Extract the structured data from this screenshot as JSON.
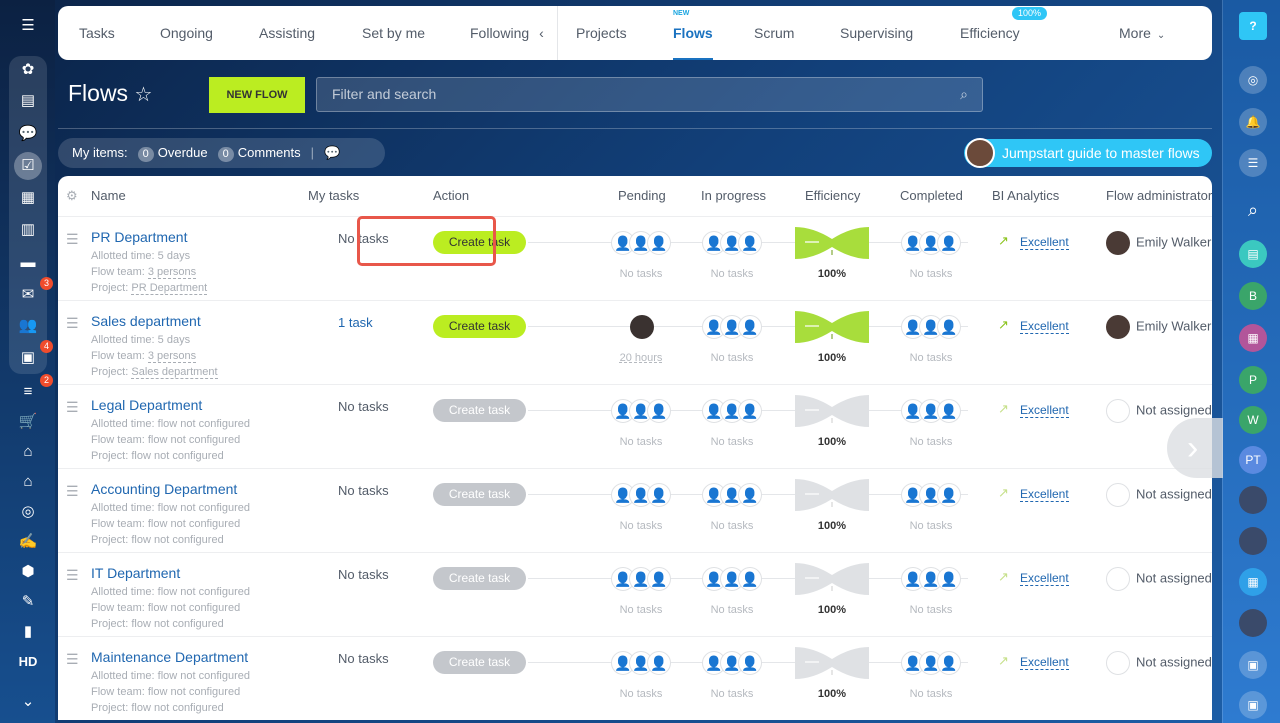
{
  "left_sidebar": {
    "items": [
      {
        "icon": "menu-icon",
        "glyph": "☰"
      },
      {
        "icon": "sites-icon",
        "glyph": "✿"
      },
      {
        "icon": "feed-icon",
        "glyph": "▤"
      },
      {
        "icon": "chat-icon",
        "glyph": "💬"
      },
      {
        "icon": "tasks-icon",
        "glyph": "☑",
        "active": true
      },
      {
        "icon": "calendar-icon",
        "glyph": "▦"
      },
      {
        "icon": "document-icon",
        "glyph": "▥"
      },
      {
        "icon": "drive-icon",
        "glyph": "▬"
      },
      {
        "icon": "mail-icon",
        "glyph": "✉",
        "badge": "3"
      },
      {
        "icon": "contacts-icon",
        "glyph": "👥"
      },
      {
        "icon": "crm-card-icon",
        "glyph": "▣",
        "badge": "4"
      },
      {
        "icon": "filter-icon",
        "glyph": "≡",
        "badge": "2"
      },
      {
        "icon": "cart-icon",
        "glyph": "🛒"
      },
      {
        "icon": "robot-icon",
        "glyph": "⌂"
      },
      {
        "icon": "warehouse-icon",
        "glyph": "⌂"
      },
      {
        "icon": "target-icon",
        "glyph": "◎"
      },
      {
        "icon": "signature-icon",
        "glyph": "✍"
      },
      {
        "icon": "box-icon",
        "glyph": "⬢"
      },
      {
        "icon": "edit-doc-icon",
        "glyph": "✎"
      },
      {
        "icon": "analytics-icon",
        "glyph": "▮"
      },
      {
        "icon": "hd-icon",
        "glyph": "HD"
      },
      {
        "icon": "chevron-down-icon",
        "glyph": "⌄"
      }
    ]
  },
  "nav": {
    "tabs": [
      {
        "label": "Tasks"
      },
      {
        "label": "Ongoing"
      },
      {
        "label": "Assisting"
      },
      {
        "label": "Set by me"
      },
      {
        "label": "Following"
      },
      {
        "label": "Projects"
      },
      {
        "label": "Flows",
        "sup": "NEW",
        "active": true
      },
      {
        "label": "Scrum"
      },
      {
        "label": "Supervising"
      },
      {
        "label": "Efficiency",
        "pill": "100%"
      },
      {
        "label": "More"
      }
    ]
  },
  "page": {
    "title": "Flows",
    "new_flow": "NEW FLOW",
    "search_placeholder": "Filter and search"
  },
  "my_items": {
    "label": "My items:",
    "overdue_count": "0",
    "overdue": "Overdue",
    "comments_count": "0",
    "comments": "Comments"
  },
  "guide": "Jumpstart guide to master flows",
  "table": {
    "headers": [
      "Name",
      "My tasks",
      "Action",
      "Pending",
      "In progress",
      "Efficiency",
      "Completed",
      "BI Analytics",
      "Flow administrator"
    ],
    "labels": {
      "allotted": "Allotted time:",
      "team": "Flow team:",
      "project": "Project:",
      "create": "Create task"
    },
    "rows": [
      {
        "name": "PR Department",
        "allotted": "5 days",
        "team": "3 persons",
        "project": "PR Department",
        "my_tasks": "No tasks",
        "enabled": true,
        "pending": "No tasks",
        "pending_avatar": false,
        "in_progress": "No tasks",
        "efficiency": "100%",
        "completed": "No tasks",
        "bi": "Excellent",
        "admin": "Emily Walker"
      },
      {
        "name": "Sales department",
        "allotted": "5 days",
        "team": "3 persons",
        "project": "Sales department",
        "my_tasks": "1 task",
        "enabled": true,
        "pending": "20 hours",
        "pending_avatar": true,
        "in_progress": "No tasks",
        "efficiency": "100%",
        "completed": "No tasks",
        "bi": "Excellent",
        "admin": "Emily Walker"
      },
      {
        "name": "Legal Department",
        "allotted": "flow not configured",
        "team": "flow not configured",
        "project": "flow not configured",
        "my_tasks": "No tasks",
        "enabled": false,
        "pending": "No tasks",
        "in_progress": "No tasks",
        "efficiency": "100%",
        "completed": "No tasks",
        "bi": "Excellent",
        "admin": "Not assigned"
      },
      {
        "name": "Accounting Department",
        "allotted": "flow not configured",
        "team": "flow not configured",
        "project": "flow not configured",
        "my_tasks": "No tasks",
        "enabled": false,
        "pending": "No tasks",
        "in_progress": "No tasks",
        "efficiency": "100%",
        "completed": "No tasks",
        "bi": "Excellent",
        "admin": "Not assigned"
      },
      {
        "name": "IT Department",
        "allotted": "flow not configured",
        "team": "flow not configured",
        "project": "flow not configured",
        "my_tasks": "No tasks",
        "enabled": false,
        "pending": "No tasks",
        "in_progress": "No tasks",
        "efficiency": "100%",
        "completed": "No tasks",
        "bi": "Excellent",
        "admin": "Not assigned"
      },
      {
        "name": "Maintenance Department",
        "allotted": "flow not configured",
        "team": "flow not configured",
        "project": "flow not configured",
        "my_tasks": "No tasks",
        "enabled": false,
        "pending": "No tasks",
        "in_progress": "No tasks",
        "efficiency": "100%",
        "completed": "No tasks",
        "bi": "Excellent",
        "admin": "Not assigned"
      }
    ]
  },
  "right_sidebar": {
    "items": [
      {
        "icon": "help-icon",
        "glyph": "?"
      },
      {
        "icon": "copilot-icon",
        "glyph": "◎"
      },
      {
        "icon": "bell-icon",
        "glyph": "🔔"
      },
      {
        "icon": "messages-icon",
        "glyph": "☰"
      },
      {
        "icon": "search-icon",
        "glyph": "⌕"
      },
      {
        "icon": "chat-avatar-icon",
        "glyph": "▤"
      },
      {
        "icon": "avatar-b",
        "glyph": "B"
      },
      {
        "icon": "calendar-chat-icon",
        "glyph": "▦"
      },
      {
        "icon": "avatar-p",
        "glyph": "P"
      },
      {
        "icon": "avatar-w",
        "glyph": "W"
      },
      {
        "icon": "avatar-pt",
        "glyph": "PT"
      },
      {
        "icon": "user-avatar",
        "glyph": ""
      },
      {
        "icon": "user-avatar",
        "glyph": ""
      },
      {
        "icon": "calendar-icon",
        "glyph": "▦"
      },
      {
        "icon": "user-avatar",
        "glyph": ""
      },
      {
        "icon": "contact-card-icon",
        "glyph": "▣"
      },
      {
        "icon": "contact-card-icon",
        "glyph": "▣"
      }
    ]
  },
  "colors": {
    "accent": "#bbed21",
    "link": "#2067b0",
    "highlight": "#e8574a",
    "guide": "#2fc6f6"
  }
}
